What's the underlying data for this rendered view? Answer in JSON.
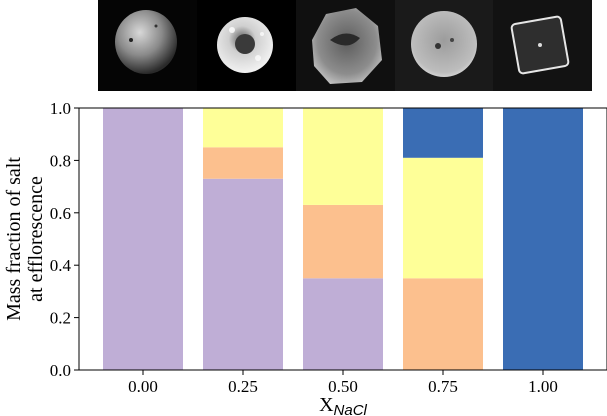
{
  "colors": {
    "purple": "#bfaed6",
    "orange": "#fcc08e",
    "yellow": "#feff98",
    "blue": "#3a6db4",
    "panel_bg": "#050505"
  },
  "images": [
    {
      "name": "sphere-particle"
    },
    {
      "name": "rough-sphere-particle"
    },
    {
      "name": "irregular-particle"
    },
    {
      "name": "textured-particle"
    },
    {
      "name": "cubic-crystal-particle"
    }
  ],
  "chart_data": {
    "type": "bar",
    "stacked": true,
    "categories": [
      "0.00",
      "0.25",
      "0.50",
      "0.75",
      "1.00"
    ],
    "series": [
      {
        "color": "#bfaed6",
        "values": [
          1.0,
          0.73,
          0.35,
          0.0,
          0.0
        ]
      },
      {
        "color": "#fcc08e",
        "values": [
          0.0,
          0.12,
          0.28,
          0.35,
          0.0
        ]
      },
      {
        "color": "#feff98",
        "values": [
          0.0,
          0.15,
          0.37,
          0.46,
          0.0
        ]
      },
      {
        "color": "#3a6db4",
        "values": [
          0.0,
          0.0,
          0.0,
          0.19,
          1.0
        ]
      }
    ],
    "ylabel_lines": [
      "Mass fraction of salt",
      "at efflorescence"
    ],
    "xlabel_main": "X",
    "xlabel_sub": "NaCl",
    "ylim": [
      0.0,
      1.0
    ],
    "yticks": [
      "0.0",
      "0.2",
      "0.4",
      "0.6",
      "0.8",
      "1.0"
    ],
    "grid": false,
    "legend": "none"
  }
}
